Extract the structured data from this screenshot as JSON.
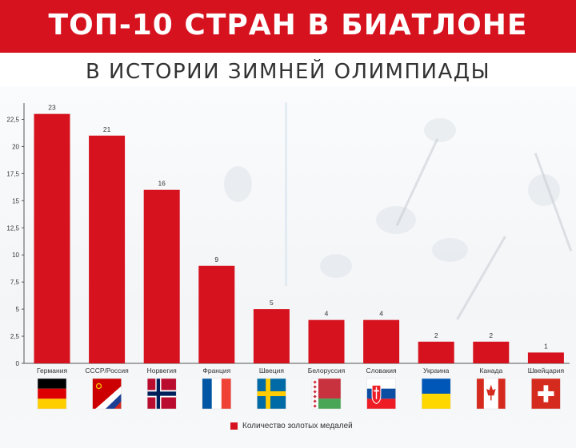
{
  "header": {
    "title": "ТОП-10 СТРАН В БИАТЛОНЕ",
    "subtitle": "В ИСТОРИИ ЗИМНЕЙ ОЛИМПИАДЫ"
  },
  "colors": {
    "accent": "#d5121e",
    "bar": "#d5121e"
  },
  "chart_data": {
    "type": "bar",
    "categories": [
      "Германия",
      "СССР/Россия",
      "Норвегия",
      "Франция",
      "Швеция",
      "Белоруссия",
      "Словакия",
      "Украина",
      "Канада",
      "Швейцария"
    ],
    "series": [
      {
        "name": "Количество золотых медалей",
        "values": [
          23,
          21,
          16,
          9,
          5,
          4,
          4,
          2,
          2,
          1
        ]
      }
    ],
    "yticks": [
      "0",
      "2,5",
      "5",
      "7,5",
      "10",
      "12,5",
      "15",
      "17,5",
      "20",
      "22,5"
    ],
    "ylim": [
      0,
      24
    ],
    "grid": false,
    "legend": "bottom-center",
    "flags": [
      "germany-flag-icon",
      "ussr-russia-flag-icon",
      "norway-flag-icon",
      "france-flag-icon",
      "sweden-flag-icon",
      "belarus-flag-icon",
      "slovakia-flag-icon",
      "ukraine-flag-icon",
      "canada-flag-icon",
      "switzerland-flag-icon"
    ]
  }
}
